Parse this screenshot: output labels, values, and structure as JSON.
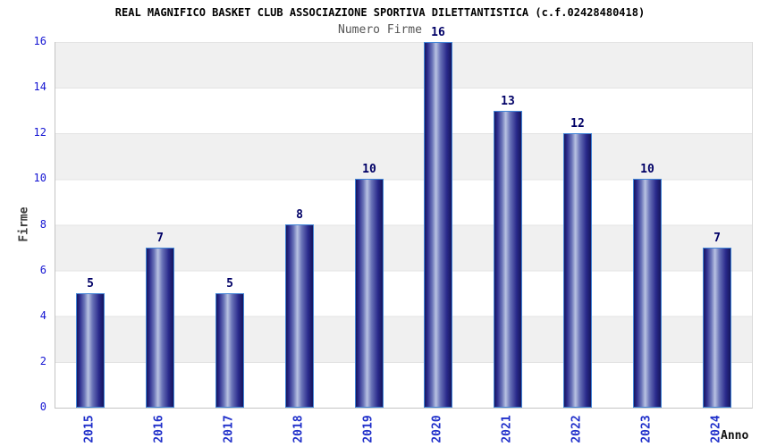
{
  "chart_data": {
    "type": "bar",
    "title": "REAL MAGNIFICO BASKET CLUB ASSOCIAZIONE SPORTIVA DILETTANTISTICA (c.f.02428480418)",
    "subtitle": "Numero Firme",
    "xlabel": "Anno",
    "ylabel": "Firme",
    "categories": [
      "2015",
      "2016",
      "2017",
      "2018",
      "2019",
      "2020",
      "2021",
      "2022",
      "2023",
      "2024"
    ],
    "values": [
      5,
      7,
      5,
      8,
      10,
      16,
      13,
      12,
      10,
      7
    ],
    "ylim": [
      0,
      16
    ],
    "ytick_step": 2,
    "grid": "horizontal bands, alternating gray/white every 2 units",
    "legend_position": "none",
    "colors": {
      "bar_border": "#4285d7",
      "bar_dark": "#1b1b70",
      "bar_light": "#b9c2e2",
      "value_label": "#000066",
      "axis_tick_label": "#1414d2",
      "category_label": "#1f2fca",
      "title": "#000000",
      "subtitle": "#555555",
      "band_gray": "#f0f0f0",
      "gridline": "#e3e3e3",
      "background": "#ffffff"
    }
  }
}
